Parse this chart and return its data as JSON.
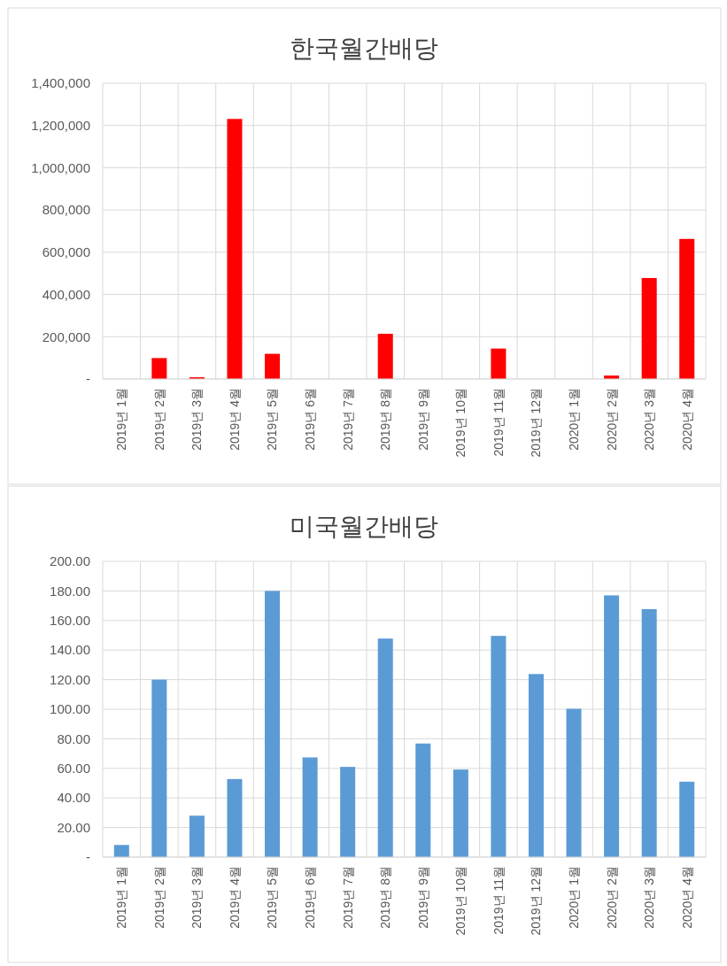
{
  "chart_data": [
    {
      "type": "bar",
      "title": "한국월간배당",
      "categories": [
        "2019년 1월",
        "2019년 2월",
        "2019년 3월",
        "2019년 4월",
        "2019년 5월",
        "2019년 6월",
        "2019년 7월",
        "2019년 8월",
        "2019년 9월",
        "2019년 10월",
        "2019년 11월",
        "2019년 12월",
        "2020년 1월",
        "2020년 2월",
        "2020년 3월",
        "2020년 4월"
      ],
      "values": [
        0,
        99000,
        8000,
        1231000,
        119000,
        0,
        0,
        214000,
        0,
        0,
        144000,
        0,
        0,
        16000,
        478000,
        663000
      ],
      "color": "#ff0000",
      "ylim": [
        0,
        1400000
      ],
      "yticks": [
        {
          "value": 0,
          "label": "-"
        },
        {
          "value": 200000,
          "label": "200,000"
        },
        {
          "value": 400000,
          "label": "400,000"
        },
        {
          "value": 600000,
          "label": "600,000"
        },
        {
          "value": 800000,
          "label": "800,000"
        },
        {
          "value": 1000000,
          "label": "1,000,000"
        },
        {
          "value": 1200000,
          "label": "1,200,000"
        },
        {
          "value": 1400000,
          "label": "1,400,000"
        }
      ],
      "grid": true
    },
    {
      "type": "bar",
      "title": "미국월간배당",
      "categories": [
        "2019년 1월",
        "2019년 2월",
        "2019년 3월",
        "2019년 4월",
        "2019년 5월",
        "2019년 6월",
        "2019년 7월",
        "2019년 8월",
        "2019년 9월",
        "2019년 10월",
        "2019년 11월",
        "2019년 12월",
        "2020년 1월",
        "2020년 2월",
        "2020년 3월",
        "2020년 4월"
      ],
      "values": [
        8.2,
        120,
        28,
        52.8,
        180,
        67.4,
        61,
        147.8,
        76.8,
        59.2,
        149.6,
        123.8,
        100.3,
        177,
        167.7,
        51
      ],
      "color": "#5b9bd5",
      "ylim": [
        0,
        200
      ],
      "yticks": [
        {
          "value": 0,
          "label": "-"
        },
        {
          "value": 20,
          "label": "20.00"
        },
        {
          "value": 40,
          "label": "40.00"
        },
        {
          "value": 60,
          "label": "60.00"
        },
        {
          "value": 80,
          "label": "80.00"
        },
        {
          "value": 100,
          "label": "100.00"
        },
        {
          "value": 120,
          "label": "120.00"
        },
        {
          "value": 140,
          "label": "140.00"
        },
        {
          "value": 160,
          "label": "160.00"
        },
        {
          "value": 180,
          "label": "180.00"
        },
        {
          "value": 200,
          "label": "200.00"
        }
      ],
      "grid": true
    }
  ]
}
